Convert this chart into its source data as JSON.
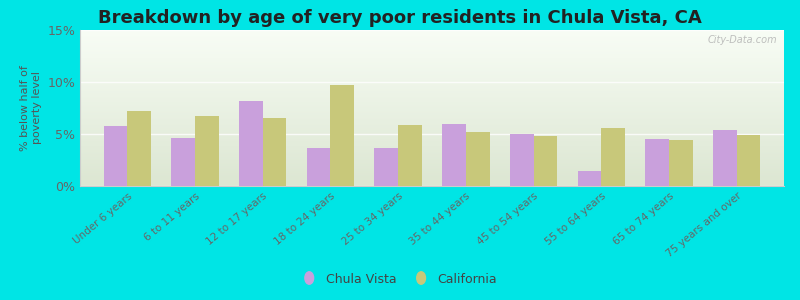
{
  "title": "Breakdown by age of very poor residents in Chula Vista, CA",
  "ylabel": "% below half of\npoverty level",
  "categories": [
    "Under 6 years",
    "6 to 11 years",
    "12 to 17 years",
    "18 to 24 years",
    "25 to 34 years",
    "35 to 44 years",
    "45 to 54 years",
    "55 to 64 years",
    "65 to 74 years",
    "75 years and over"
  ],
  "chula_vista": [
    5.8,
    4.6,
    8.2,
    3.7,
    3.7,
    6.0,
    5.0,
    1.4,
    4.5,
    5.4
  ],
  "california": [
    7.2,
    6.7,
    6.5,
    9.7,
    5.9,
    5.2,
    4.8,
    5.6,
    4.4,
    4.9
  ],
  "chula_vista_color": "#c9a0dc",
  "california_color": "#c8c87a",
  "background_outer": "#00e5e5",
  "bar_width": 0.35,
  "ylim": [
    0,
    15
  ],
  "yticks": [
    0,
    5,
    10,
    15
  ],
  "ytick_labels": [
    "0%",
    "5%",
    "10%",
    "15%"
  ],
  "title_fontsize": 13,
  "legend_labels": [
    "Chula Vista",
    "California"
  ],
  "watermark": "City-Data.com"
}
